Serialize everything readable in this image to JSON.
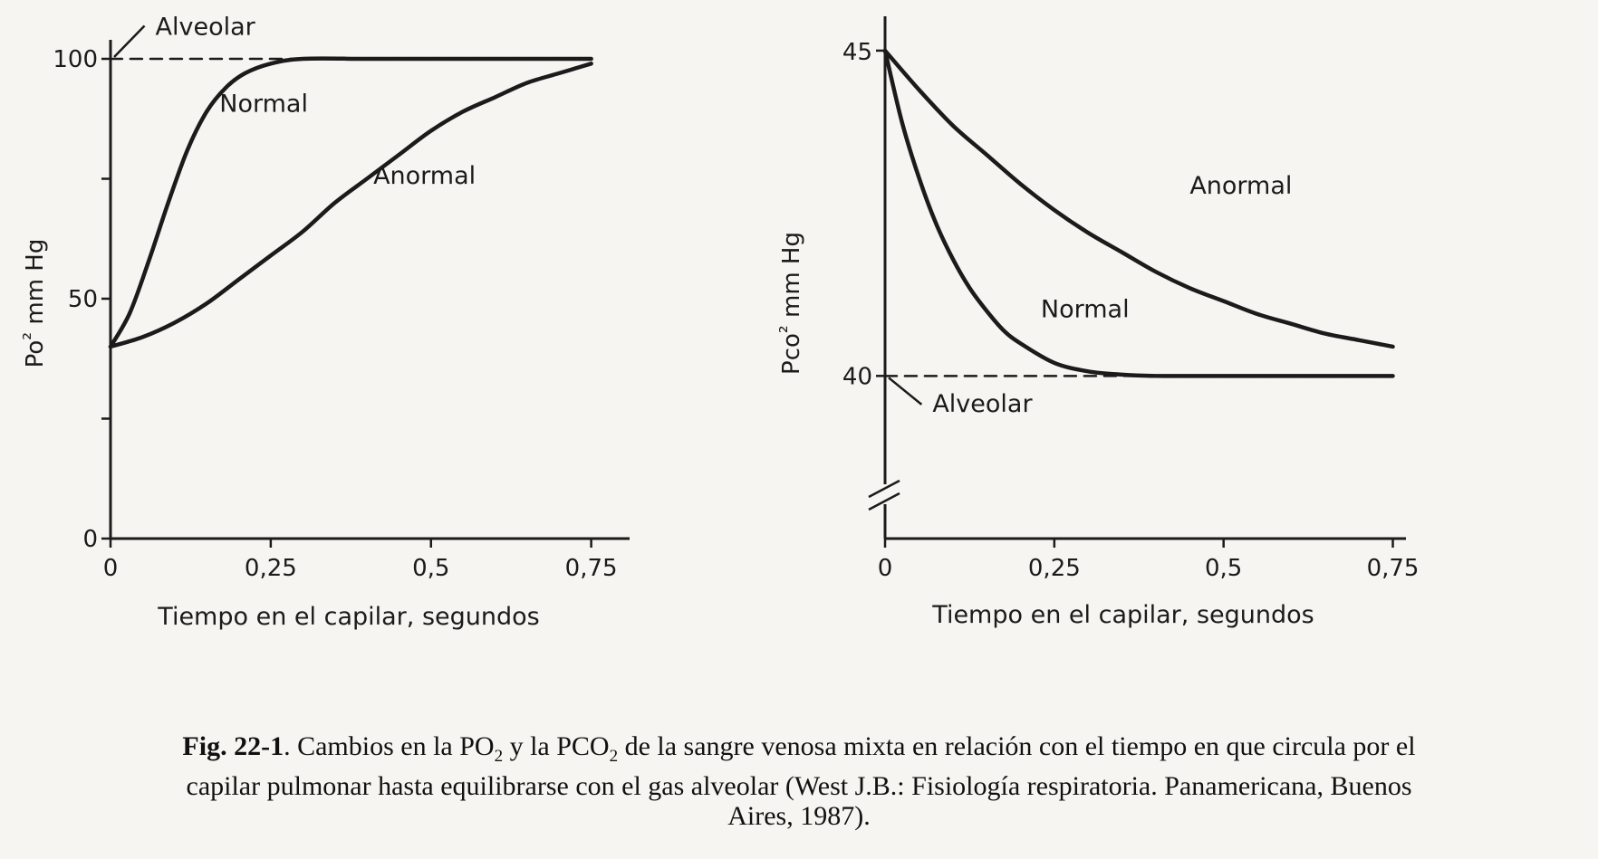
{
  "chart_data": [
    {
      "type": "line",
      "xlabel": "Tiempo en el capilar, segundos",
      "ylabel_parts": [
        "Po",
        "²",
        " mm Hg"
      ],
      "xticks": [
        {
          "v": 0,
          "t": "0"
        },
        {
          "v": 0.25,
          "t": "0,25"
        },
        {
          "v": 0.5,
          "t": "0,5"
        },
        {
          "v": 0.75,
          "t": "0,75"
        }
      ],
      "yticks": [
        {
          "v": 0,
          "t": "0"
        },
        {
          "v": 25,
          "t": ""
        },
        {
          "v": 50,
          "t": "50"
        },
        {
          "v": 75,
          "t": ""
        },
        {
          "v": 100,
          "t": "100"
        }
      ],
      "xlim": [
        0,
        0.8
      ],
      "ylim": [
        0,
        100
      ],
      "series": [
        {
          "name": "Normal",
          "x": [
            0,
            0.03,
            0.06,
            0.09,
            0.12,
            0.15,
            0.18,
            0.21,
            0.25,
            0.3,
            0.4,
            0.5,
            0.6,
            0.7,
            0.75
          ],
          "y": [
            40,
            47,
            58,
            70,
            81,
            89,
            94,
            97,
            99,
            100,
            100,
            100,
            100,
            100,
            100
          ]
        },
        {
          "name": "Anormal",
          "x": [
            0,
            0.05,
            0.1,
            0.15,
            0.2,
            0.25,
            0.3,
            0.35,
            0.4,
            0.45,
            0.5,
            0.55,
            0.6,
            0.65,
            0.7,
            0.75
          ],
          "y": [
            40,
            42,
            45,
            49,
            54,
            59,
            64,
            70,
            75,
            80,
            85,
            89,
            92,
            95,
            97,
            99
          ]
        },
        {
          "name": "Alveolar",
          "style": "dashed",
          "x": [
            0,
            0.75
          ],
          "y": [
            100,
            100
          ]
        }
      ],
      "annotations": [
        {
          "text": "Alveolar",
          "x": 0.07,
          "y": 105
        },
        {
          "text": "Normal",
          "x": 0.17,
          "y": 89
        },
        {
          "text": "Anormal",
          "x": 0.41,
          "y": 74
        }
      ]
    },
    {
      "type": "line",
      "xlabel": "Tiempo en el capilar, segundos",
      "ylabel_parts": [
        "Pco",
        "²",
        " mm Hg"
      ],
      "xticks": [
        {
          "v": 0,
          "t": "0"
        },
        {
          "v": 0.25,
          "t": "0,25"
        },
        {
          "v": 0.5,
          "t": "0,5"
        },
        {
          "v": 0.75,
          "t": "0,75"
        }
      ],
      "yticks": [
        {
          "v": 40,
          "t": "40"
        },
        {
          "v": 45,
          "t": "45"
        }
      ],
      "xlim": [
        0,
        0.76
      ],
      "ylim": [
        37.5,
        45.5
      ],
      "axis_break": true,
      "series": [
        {
          "name": "Normal",
          "x": [
            0,
            0.025,
            0.05,
            0.075,
            0.1,
            0.125,
            0.15,
            0.175,
            0.2,
            0.25,
            0.3,
            0.35,
            0.4,
            0.5,
            0.6,
            0.75
          ],
          "y": [
            45,
            43.9,
            43.05,
            42.35,
            41.8,
            41.35,
            41,
            40.7,
            40.5,
            40.2,
            40.07,
            40.02,
            40,
            40,
            40,
            40
          ]
        },
        {
          "name": "Anormal",
          "x": [
            0,
            0.05,
            0.1,
            0.15,
            0.2,
            0.25,
            0.3,
            0.35,
            0.4,
            0.45,
            0.5,
            0.55,
            0.6,
            0.65,
            0.7,
            0.75
          ],
          "y": [
            45,
            44.4,
            43.85,
            43.4,
            42.95,
            42.55,
            42.2,
            41.9,
            41.6,
            41.35,
            41.15,
            40.95,
            40.8,
            40.65,
            40.55,
            40.45
          ]
        },
        {
          "name": "Alveolar",
          "style": "dashed",
          "x": [
            0,
            0.75
          ],
          "y": [
            40,
            40
          ]
        }
      ],
      "annotations": [
        {
          "text": "Alveolar",
          "x": 0.07,
          "y": 39.45
        },
        {
          "text": "Normal",
          "x": 0.23,
          "y": 40.9
        },
        {
          "text": "Anormal",
          "x": 0.45,
          "y": 42.8
        }
      ]
    }
  ],
  "caption": {
    "label": "Fig. 22-1",
    "line1_a": ". Cambios en la PO",
    "sub1": "2",
    "line1_b": " y la PCO",
    "sub2": "2",
    "line1_c": " de la sangre venosa mixta en relación con el tiempo en que circula por el",
    "line2": "capilar pulmonar hasta equilibrarse con el gas alveolar (West J.B.: Fisiología respiratoria. Panamericana, Buenos",
    "line3": "Aires, 1987)."
  }
}
